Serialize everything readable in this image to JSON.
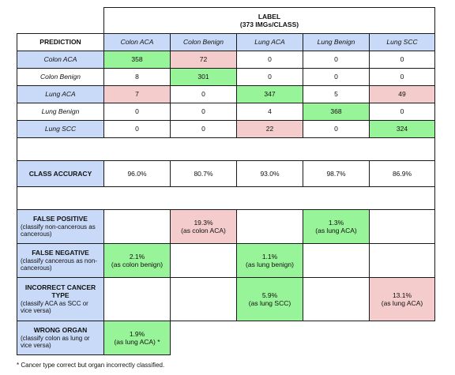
{
  "header": {
    "label_title": "LABEL",
    "label_sub": "(373 IMGs/CLASS)",
    "prediction": "PREDICTION",
    "columns": [
      "Colon ACA",
      "Colon Benign",
      "Lung ACA",
      "Lung Benign",
      "Lung SCC"
    ]
  },
  "matrix": {
    "rows": [
      {
        "name": "Colon ACA",
        "values": [
          "358",
          "72",
          "0",
          "0",
          "0"
        ]
      },
      {
        "name": "Colon Benign",
        "values": [
          "8",
          "301",
          "0",
          "0",
          "0"
        ]
      },
      {
        "name": "Lung ACA",
        "values": [
          "7",
          "0",
          "347",
          "5",
          "49"
        ]
      },
      {
        "name": "Lung Benign",
        "values": [
          "0",
          "0",
          "4",
          "368",
          "0"
        ]
      },
      {
        "name": "Lung SCC",
        "values": [
          "0",
          "0",
          "22",
          "0",
          "324"
        ]
      }
    ]
  },
  "accuracy": {
    "label": "CLASS ACCURACY",
    "values": [
      "96.0%",
      "80.7%",
      "93.0%",
      "98.7%",
      "86.9%"
    ]
  },
  "errors": {
    "false_positive": {
      "title": "FALSE POSITIVE",
      "desc": "(classify non-cancerous as cancerous)",
      "cell_value": "19.3%",
      "cell_note": "(as colon ACA)",
      "cell2_value": "1.3%",
      "cell2_note": "(as lung ACA)"
    },
    "false_negative": {
      "title": "FALSE NEGATIVE",
      "desc": "(classify cancerous as non-cancerous)",
      "cell_value": "2.1%",
      "cell_note": "(as colon benign)",
      "cell2_value": "1.1%",
      "cell2_note": "(as lung benign)"
    },
    "incorrect_type": {
      "title": "INCORRECT CANCER TYPE",
      "desc": "(classify ACA as SCC or vice versa)",
      "cell_value": "5.9%",
      "cell_note": "(as lung SCC)",
      "cell2_value": "13.1%",
      "cell2_note": "(as lung ACA)"
    },
    "wrong_organ": {
      "title": "WRONG ORGAN",
      "desc": "(classify colon as lung or vice versa)",
      "cell_value": "1.9%",
      "cell_note": "(as lung ACA) *"
    }
  },
  "footnote": "* Cancer type correct but organ incorrectly classified.",
  "colors": {
    "header_blue": "#c9daf8",
    "correct_green": "#98f498",
    "error_pink": "#f4cccc"
  }
}
